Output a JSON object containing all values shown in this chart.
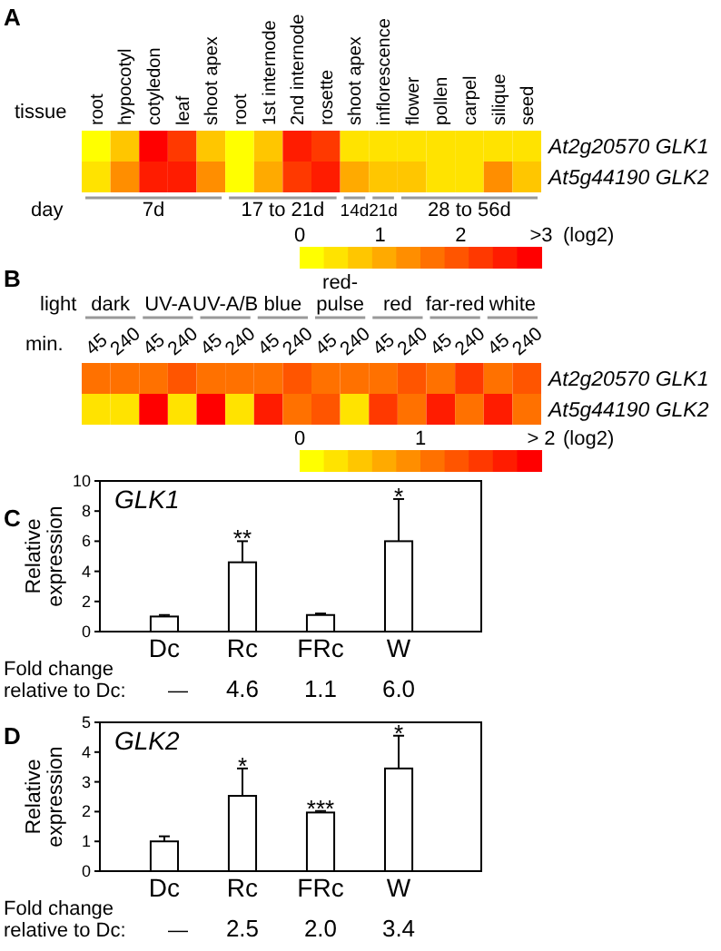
{
  "chart_data": [
    {
      "type": "heatmap",
      "xlabel": "tissue",
      "clabel": "(log2)",
      "categories": [
        "root",
        "hypocotyl",
        "cotyledon",
        "leaf",
        "shoot apex",
        "root",
        "1st internode",
        "2nd internode",
        "rosette",
        "shoot apex",
        "inflorescence",
        "flower",
        "pollen",
        "carpel",
        "silique",
        "seed"
      ],
      "y_categories": [
        "At2g20570 GLK1",
        "At5g44190 GLK2"
      ],
      "cells": [
        [
          0.1,
          0.6,
          2.7,
          2.2,
          0.7,
          0.1,
          0.8,
          2.5,
          2.2,
          0.4,
          0.4,
          0.5,
          0.3,
          0.3,
          0.5,
          0.3
        ],
        [
          0.3,
          1.2,
          2.4,
          2.4,
          1.2,
          0.1,
          1.1,
          2.3,
          2.6,
          0.9,
          0.6,
          0.8,
          0.3,
          0.4,
          1.2,
          0.8
        ]
      ],
      "clim": [
        0,
        3
      ],
      "cticks": [
        0,
        1,
        2,
        {
          "value": 3,
          "label": ">3"
        }
      ],
      "annotations": [
        "A",
        "day",
        "7d",
        "17 to 21d",
        "14d",
        "21d",
        "28 to 56d"
      ]
    },
    {
      "type": "heatmap",
      "xlabel": "min.",
      "clabel": "(log2)",
      "categories": [
        "45",
        "240",
        "45",
        "240",
        "45",
        "240",
        "45",
        "240",
        "45",
        "240",
        "45",
        "240",
        "45",
        "240",
        "45",
        "240"
      ],
      "y_categories": [
        "At2g20570 GLK1",
        "At5g44190 GLK2"
      ],
      "cells": [
        [
          1.0,
          1.0,
          1.0,
          1.3,
          1.0,
          1.0,
          1.0,
          1.2,
          1.0,
          1.0,
          1.0,
          1.2,
          1.0,
          1.4,
          1.1,
          1.2
        ],
        [
          0.2,
          0.2,
          2.0,
          0.2,
          1.8,
          0.2,
          1.6,
          1.0,
          1.3,
          0.2,
          1.5,
          1.1,
          1.6,
          1.0,
          1.7,
          1.0
        ]
      ],
      "clim": [
        0,
        2
      ],
      "cticks": [
        0,
        1,
        {
          "value": 2,
          "label": "> 2"
        }
      ],
      "annotations": [
        "B",
        "light",
        "dark",
        "UV-A",
        "UV-A/B",
        "blue",
        "red-pulse",
        "red",
        "far-red",
        "white"
      ]
    },
    {
      "type": "bar",
      "title": "GLK1",
      "ylabel": "Relative expression",
      "categories": [
        "Dc",
        "Rc",
        "FRc",
        "W"
      ],
      "values": [
        1.0,
        4.6,
        1.1,
        6.0
      ],
      "errors": [
        [
          1.0,
          1.1
        ],
        [
          4.6,
          6.0
        ],
        [
          1.1,
          1.2
        ],
        [
          6.0,
          8.8
        ]
      ],
      "color": "#ffffff",
      "ylim": [
        0,
        10
      ],
      "yticks": [
        0,
        2,
        4,
        6,
        8,
        10
      ],
      "annotations": [
        "C",
        "Fold change",
        "relative to Dc:",
        "—",
        "4.6",
        "1.1",
        "6.0",
        "**",
        "*"
      ]
    },
    {
      "type": "bar",
      "title": "GLK2",
      "ylabel": "Relative expression",
      "categories": [
        "Dc",
        "Rc",
        "FRc",
        "W"
      ],
      "values": [
        1.0,
        2.53,
        1.97,
        3.45
      ],
      "errors": [
        [
          1.0,
          1.17
        ],
        [
          2.53,
          3.45
        ],
        [
          1.97,
          2.02
        ],
        [
          3.45,
          4.55
        ]
      ],
      "color": "#ffffff",
      "ylim": [
        0,
        5
      ],
      "yticks": [
        0,
        1,
        2,
        3,
        4,
        5
      ],
      "annotations": [
        "D",
        "Fold change",
        "relative to Dc:",
        "—",
        "2.5",
        "2.0",
        "3.4",
        "*",
        "***",
        "*"
      ]
    }
  ]
}
